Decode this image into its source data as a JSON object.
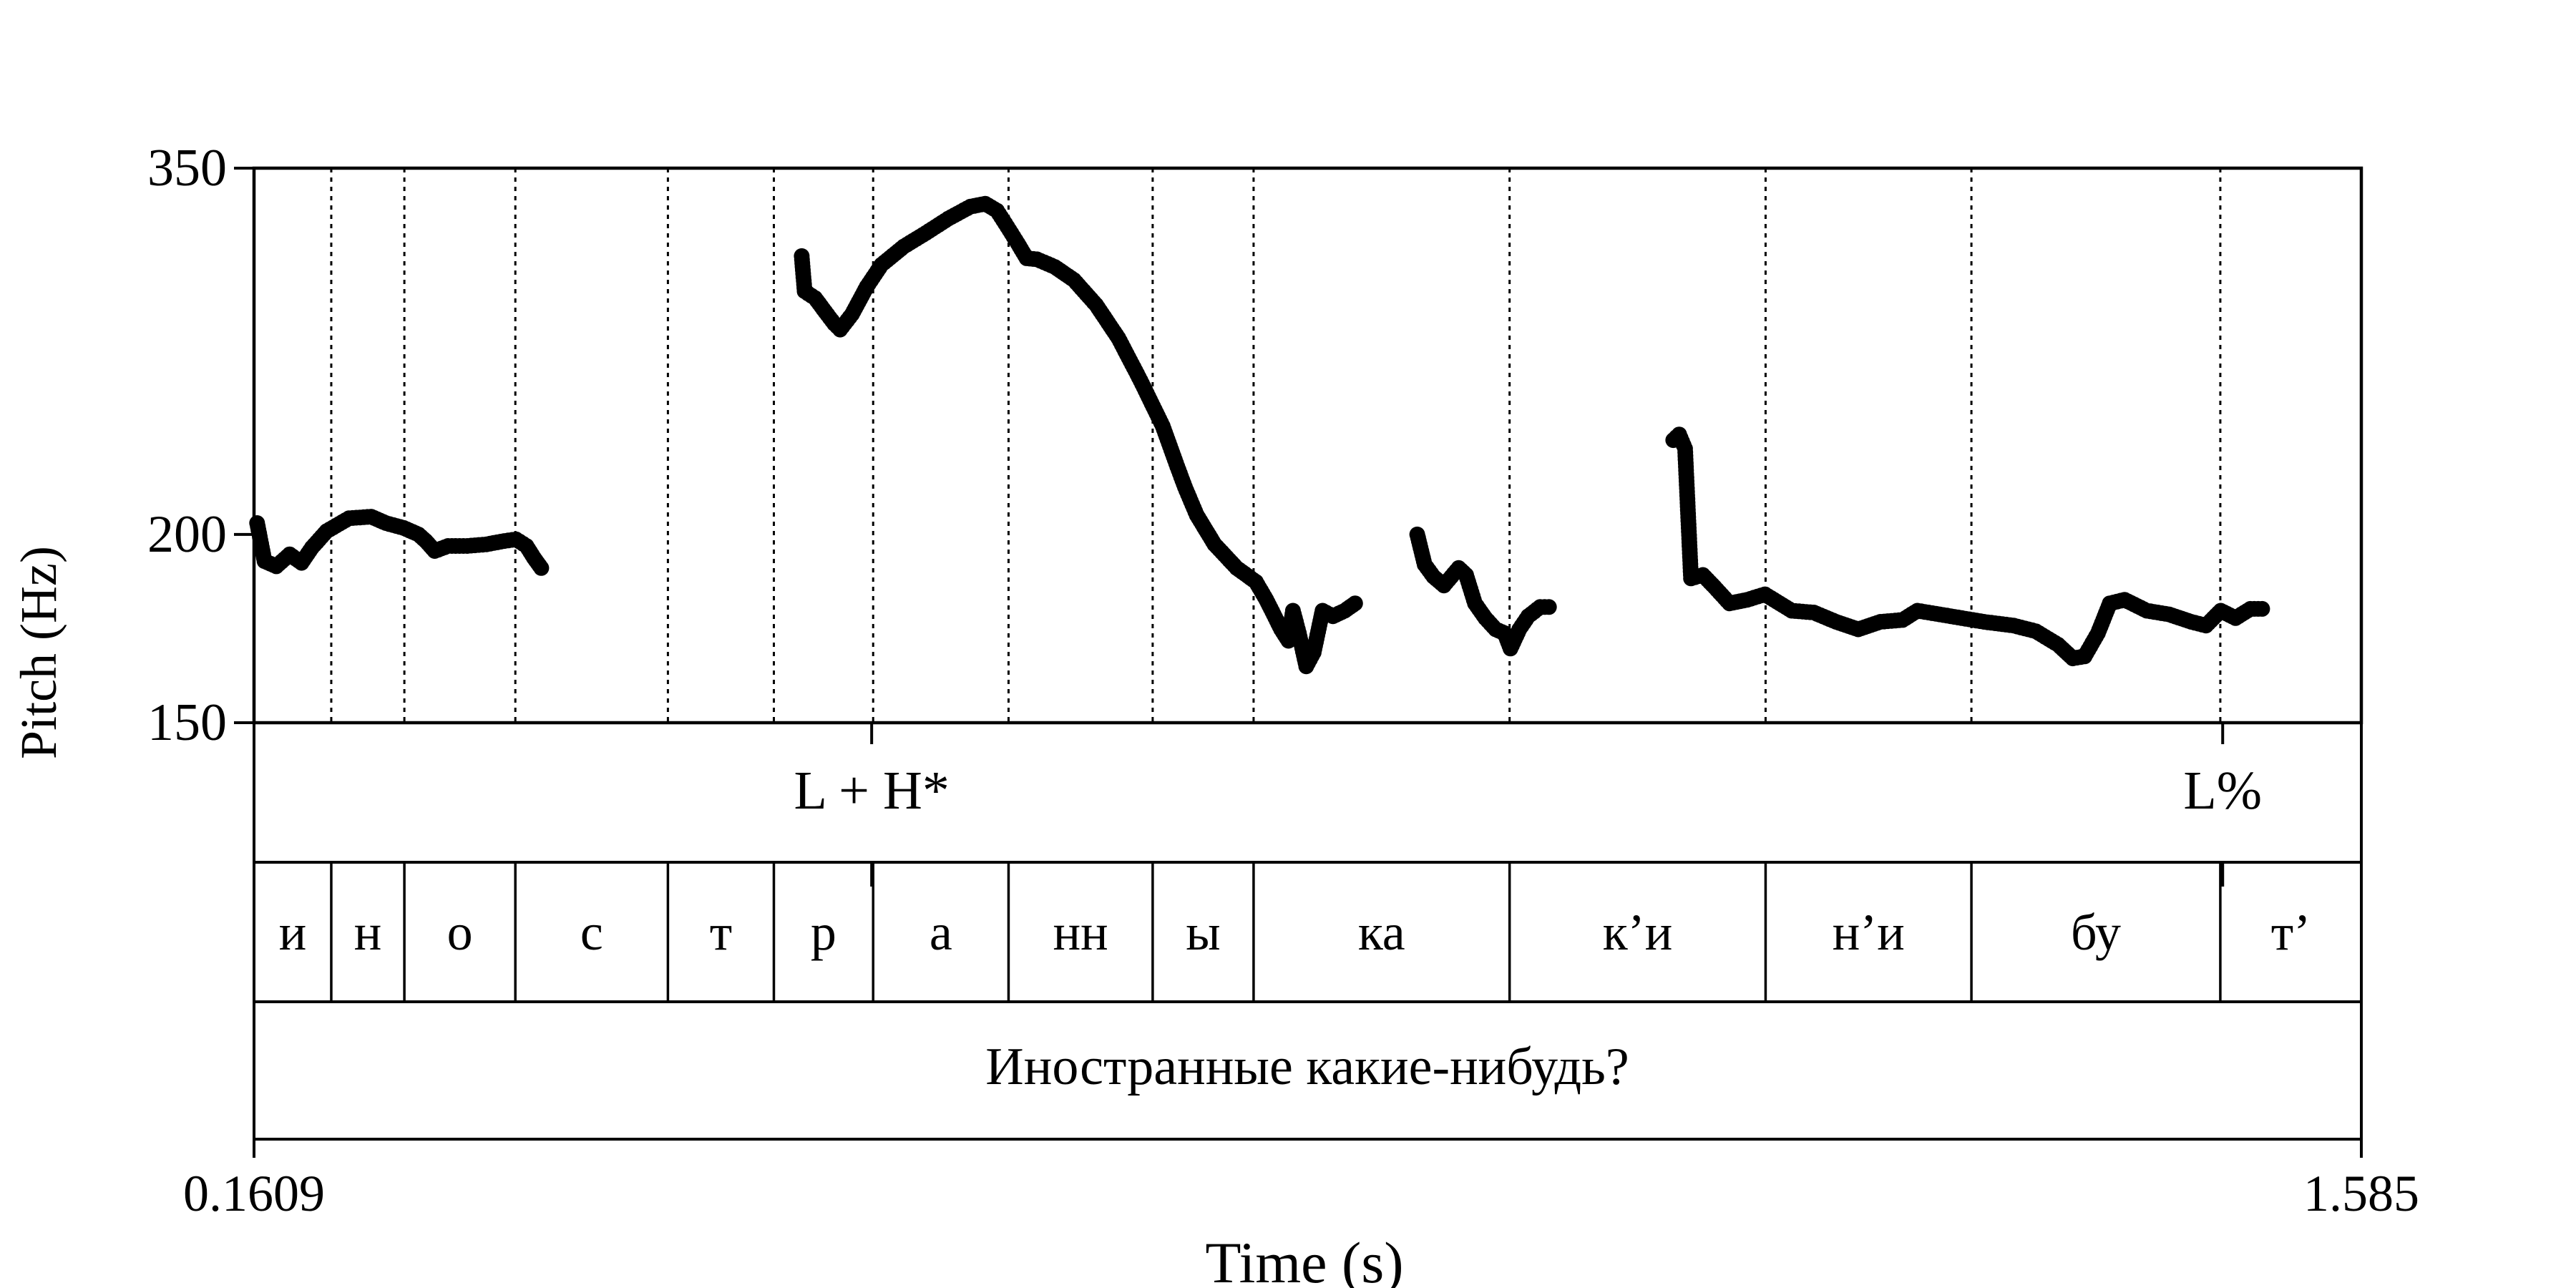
{
  "chart_data": {
    "type": "scatter",
    "title": "",
    "xlabel": "Time (s)",
    "ylabel": "Pitch (Hz)",
    "xlim": [
      0.1609,
      1.585
    ],
    "ylim": [
      150,
      350
    ],
    "x_tick_labels": [
      "0.1609",
      "1.585"
    ],
    "y_ticks": [
      150,
      200,
      350
    ],
    "y_tick_labels": [
      "150",
      "200",
      "350"
    ],
    "tones": [
      {
        "label": "L + H*",
        "time": 0.5783
      },
      {
        "label": "L%",
        "time": 1.4913
      }
    ],
    "segments": [
      {
        "label": "и",
        "start": 0.1609,
        "end": 0.2131
      },
      {
        "label": "н",
        "start": 0.2131,
        "end": 0.2625
      },
      {
        "label": "о",
        "start": 0.2625,
        "end": 0.3375
      },
      {
        "label": "с",
        "start": 0.3375,
        "end": 0.4406
      },
      {
        "label": "т",
        "start": 0.4406,
        "end": 0.5122
      },
      {
        "label": "р",
        "start": 0.5122,
        "end": 0.5793
      },
      {
        "label": "а",
        "start": 0.5793,
        "end": 0.6708
      },
      {
        "label": "нн",
        "start": 0.6708,
        "end": 0.7682
      },
      {
        "label": "ы",
        "start": 0.7682,
        "end": 0.8364
      },
      {
        "label": "ка",
        "start": 0.8364,
        "end": 1.0094
      },
      {
        "label": "к’и",
        "start": 1.0094,
        "end": 1.1824
      },
      {
        "label": "н’и",
        "start": 1.1824,
        "end": 1.3215
      },
      {
        "label": "бу",
        "start": 1.3215,
        "end": 1.4897
      },
      {
        "label": "т’",
        "start": 1.4897,
        "end": 1.585
      }
    ],
    "sentence": "Иностранные какие-нибудь?",
    "pitch_keypoints": [
      [
        [
          0.163,
          203.5
        ],
        [
          0.168,
          192
        ],
        [
          0.176,
          190.5
        ],
        [
          0.185,
          194
        ],
        [
          0.193,
          191.5
        ],
        [
          0.2,
          196
        ],
        [
          0.21,
          201
        ],
        [
          0.225,
          205
        ],
        [
          0.24,
          205.5
        ],
        [
          0.25,
          203.5
        ],
        [
          0.262,
          202
        ],
        [
          0.272,
          200
        ],
        [
          0.277,
          198
        ],
        [
          0.283,
          195
        ],
        [
          0.292,
          196.5
        ],
        [
          0.305,
          196.5
        ],
        [
          0.318,
          197
        ],
        [
          0.33,
          198
        ],
        [
          0.338,
          198.5
        ],
        [
          0.345,
          196.5
        ],
        [
          0.35,
          193
        ],
        [
          0.355,
          190
        ]
      ],
      [
        [
          0.531,
          306
        ],
        [
          0.533,
          290
        ],
        [
          0.54,
          287
        ],
        [
          0.547,
          281
        ],
        [
          0.553,
          276
        ],
        [
          0.557,
          273.5
        ],
        [
          0.565,
          280
        ],
        [
          0.575,
          292
        ],
        [
          0.585,
          302
        ],
        [
          0.6,
          310.5
        ],
        [
          0.615,
          317
        ],
        [
          0.63,
          324
        ],
        [
          0.645,
          330
        ],
        [
          0.655,
          331.5
        ],
        [
          0.663,
          328
        ],
        [
          0.67,
          320
        ],
        [
          0.677,
          312
        ],
        [
          0.683,
          305
        ],
        [
          0.69,
          304.5
        ],
        [
          0.702,
          301
        ],
        [
          0.715,
          295
        ],
        [
          0.73,
          284
        ],
        [
          0.745,
          270
        ],
        [
          0.76,
          253
        ],
        [
          0.775,
          236
        ],
        [
          0.784,
          223
        ],
        [
          0.79,
          215
        ],
        [
          0.798,
          206
        ],
        [
          0.81,
          197
        ],
        [
          0.825,
          190
        ],
        [
          0.838,
          186
        ],
        [
          0.845,
          181
        ],
        [
          0.85,
          177
        ],
        [
          0.855,
          173
        ],
        [
          0.86,
          170
        ],
        [
          0.863,
          178
        ],
        [
          0.867,
          172
        ],
        [
          0.872,
          163.5
        ],
        [
          0.877,
          167
        ],
        [
          0.883,
          178
        ],
        [
          0.89,
          176.5
        ],
        [
          0.898,
          178
        ],
        [
          0.905,
          180
        ]
      ],
      [
        [
          0.947,
          200
        ],
        [
          0.952,
          191
        ],
        [
          0.958,
          187.5
        ],
        [
          0.965,
          185
        ],
        [
          0.975,
          190
        ],
        [
          0.98,
          188
        ],
        [
          0.986,
          180
        ],
        [
          0.993,
          176
        ],
        [
          1.0,
          173
        ],
        [
          1.006,
          172
        ],
        [
          1.01,
          168
        ],
        [
          1.016,
          173
        ],
        [
          1.022,
          176.5
        ],
        [
          1.03,
          179
        ],
        [
          1.036,
          179
        ]
      ],
      [
        [
          1.12,
          231
        ],
        [
          1.124,
          233
        ],
        [
          1.128,
          228
        ],
        [
          1.132,
          187
        ],
        [
          1.14,
          188
        ],
        [
          1.148,
          184.5
        ],
        [
          1.158,
          180
        ],
        [
          1.17,
          181
        ],
        [
          1.182,
          182.5
        ],
        [
          1.2,
          178
        ],
        [
          1.215,
          177.5
        ],
        [
          1.23,
          175
        ],
        [
          1.245,
          173
        ],
        [
          1.26,
          175
        ],
        [
          1.275,
          175.5
        ],
        [
          1.285,
          178
        ],
        [
          1.3,
          177
        ],
        [
          1.315,
          176
        ],
        [
          1.33,
          175
        ],
        [
          1.35,
          174
        ],
        [
          1.365,
          172.5
        ],
        [
          1.38,
          169
        ],
        [
          1.39,
          165.5
        ],
        [
          1.398,
          166
        ],
        [
          1.407,
          172
        ],
        [
          1.415,
          180
        ],
        [
          1.425,
          181
        ],
        [
          1.44,
          178
        ],
        [
          1.455,
          177
        ],
        [
          1.47,
          175
        ],
        [
          1.48,
          174
        ],
        [
          1.49,
          178
        ],
        [
          1.5,
          176
        ],
        [
          1.51,
          178.5
        ],
        [
          1.518,
          178.5
        ]
      ]
    ]
  }
}
